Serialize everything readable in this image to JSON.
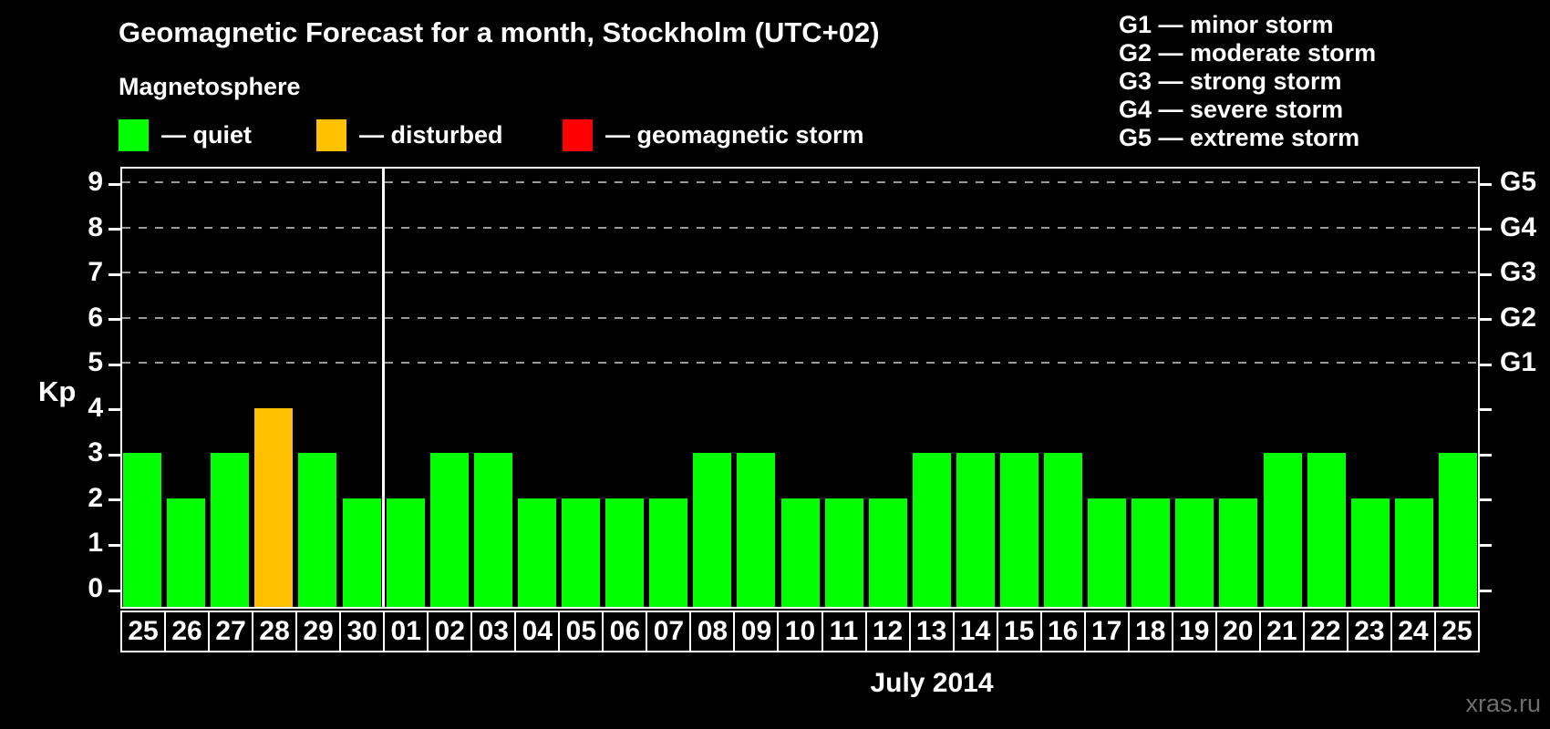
{
  "title": "Geomagnetic Forecast for a month, Stockholm (UTC+02)",
  "subtitle": "Magnetosphere",
  "magnetosphere_legend": {
    "items": [
      {
        "name": "quiet",
        "label": "— quiet",
        "color": "#00FF00",
        "x": 0
      },
      {
        "name": "disturbed",
        "label": "— disturbed",
        "color": "#FFC000",
        "x": 217
      },
      {
        "name": "geomagnetic-storm",
        "label": "— geomagnetic storm",
        "color": "#FF0000",
        "x": 487
      }
    ]
  },
  "storm_scale_legend": [
    "G1 — minor storm",
    "G2 — moderate storm",
    "G3 — strong storm",
    "G4 — severe storm",
    "G5 — extreme storm"
  ],
  "axis_left_label": "Kp",
  "month_label": "July 2014",
  "watermark": "xras.ru",
  "colors": {
    "background": "#000000",
    "quiet": "#00FF00",
    "disturbed": "#FFC000",
    "storm": "#FF0000",
    "axis": "#FFFFFF",
    "gridline": "#9A9A9A",
    "watermark": "#6E6E6E"
  },
  "chart_data": {
    "type": "bar",
    "title": "Geomagnetic Forecast for a month, Stockholm (UTC+02)",
    "subtitle": "Magnetosphere",
    "xlabel": "July 2014",
    "ylabel": "Kp",
    "ylim": [
      0,
      9
    ],
    "yticks": [
      0,
      1,
      2,
      3,
      4,
      5,
      6,
      7,
      8,
      9
    ],
    "gridlines_at": [
      5,
      6,
      7,
      8,
      9
    ],
    "grid": "dashed horizontal at Kp 5-9 only",
    "legend_position": "above chart (quiet/disturbed/storm) and top-right (G1-G5)",
    "right_axis": [
      {
        "kp": 5,
        "label": "G1"
      },
      {
        "kp": 6,
        "label": "G2"
      },
      {
        "kp": 7,
        "label": "G3"
      },
      {
        "kp": 8,
        "label": "G4"
      },
      {
        "kp": 9,
        "label": "G5"
      }
    ],
    "month_separator_after_index": 5,
    "categories": [
      "25",
      "26",
      "27",
      "28",
      "29",
      "30",
      "01",
      "02",
      "03",
      "04",
      "05",
      "06",
      "07",
      "08",
      "09",
      "10",
      "11",
      "12",
      "13",
      "14",
      "15",
      "16",
      "17",
      "18",
      "19",
      "20",
      "21",
      "22",
      "23",
      "24",
      "25"
    ],
    "values": [
      3,
      2,
      3,
      4,
      3,
      2,
      2,
      3,
      3,
      2,
      2,
      2,
      2,
      3,
      3,
      2,
      2,
      2,
      3,
      3,
      3,
      3,
      2,
      2,
      2,
      2,
      3,
      3,
      2,
      2,
      3
    ],
    "statuses": [
      "quiet",
      "quiet",
      "quiet",
      "disturbed",
      "quiet",
      "quiet",
      "quiet",
      "quiet",
      "quiet",
      "quiet",
      "quiet",
      "quiet",
      "quiet",
      "quiet",
      "quiet",
      "quiet",
      "quiet",
      "quiet",
      "quiet",
      "quiet",
      "quiet",
      "quiet",
      "quiet",
      "quiet",
      "quiet",
      "quiet",
      "quiet",
      "quiet",
      "quiet",
      "quiet",
      "quiet"
    ]
  }
}
